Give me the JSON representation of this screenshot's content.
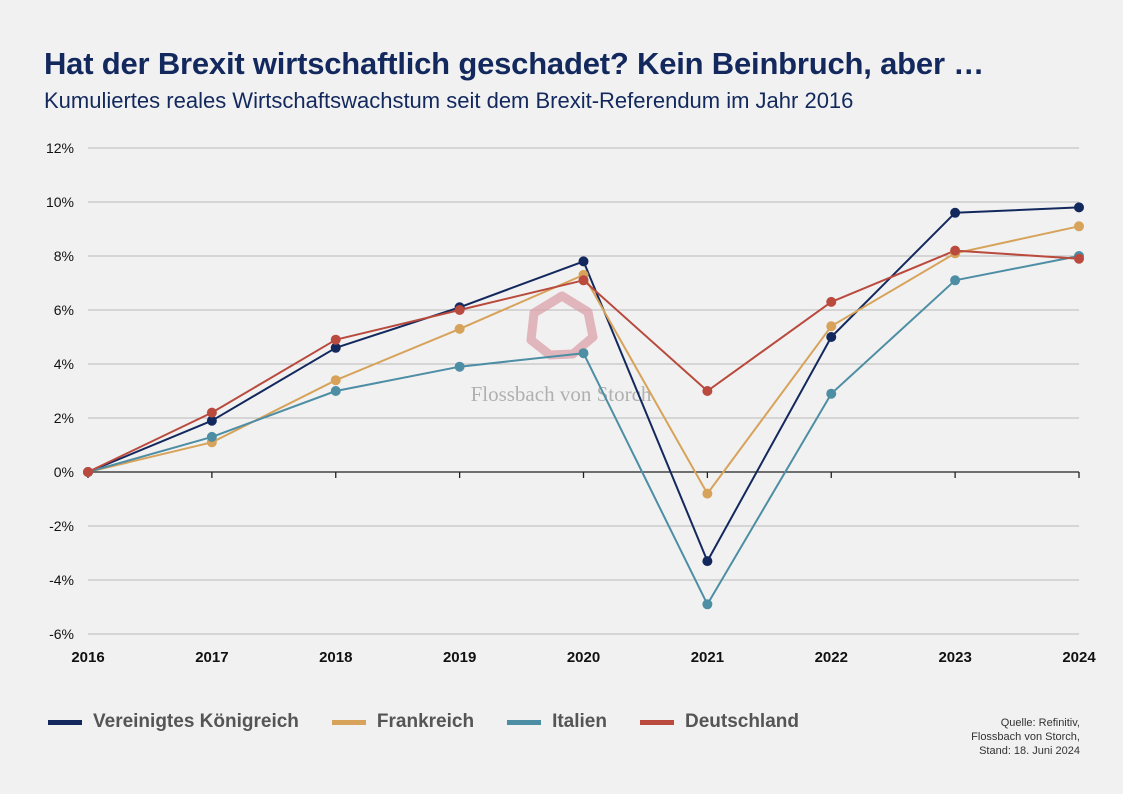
{
  "title": "Hat der Brexit wirtschaftlich geschadet? Kein Beinbruch, aber …",
  "subtitle": "Kumuliertes reales Wirtschaftswachstum seit dem Brexit-Referendum im Jahr 2016",
  "watermark": "Flossbach von Storch",
  "source": {
    "line1": "Quelle: Refinitiv,",
    "line2": "Flossbach von Storch,",
    "line3": "Stand: 18. Juni 2024"
  },
  "colors": {
    "grid": "#b9b9b9",
    "axis": "#222222",
    "watermark_logo": "#d9a0a8",
    "watermark_text": "#a9a9a9"
  },
  "chart_data": {
    "type": "line",
    "title": "Hat der Brexit wirtschaftlich geschadet? Kein Beinbruch, aber …",
    "subtitle": "Kumuliertes reales Wirtschaftswachstum seit dem Brexit-Referendum im Jahr 2016",
    "x": [
      "2016",
      "2017",
      "2018",
      "2019",
      "2020",
      "2021",
      "2022",
      "2023",
      "2024"
    ],
    "ylim": [
      -6,
      12
    ],
    "yticks": [
      -6,
      -4,
      -2,
      0,
      2,
      4,
      6,
      8,
      10,
      12
    ],
    "ytick_labels": [
      "-6%",
      "-4%",
      "-2%",
      "0%",
      "2%",
      "4%",
      "6%",
      "8%",
      "10%",
      "12%"
    ],
    "grid": true,
    "legend_position": "bottom",
    "series": [
      {
        "name": "Vereinigtes Königreich",
        "color": "#13295e",
        "values": [
          0,
          1.9,
          4.6,
          6.1,
          7.8,
          -3.3,
          5.0,
          9.6,
          9.8
        ]
      },
      {
        "name": "Frankreich",
        "color": "#d7a35b",
        "values": [
          0,
          1.1,
          3.4,
          5.3,
          7.3,
          -0.8,
          5.4,
          8.1,
          9.1
        ]
      },
      {
        "name": "Italien",
        "color": "#4d8ea4",
        "values": [
          0,
          1.3,
          3.0,
          3.9,
          4.4,
          -4.9,
          2.9,
          7.1,
          8.0
        ]
      },
      {
        "name": "Deutschland",
        "color": "#b94a3d",
        "values": [
          0,
          2.2,
          4.9,
          6.0,
          7.1,
          3.0,
          6.3,
          8.2,
          7.9
        ]
      }
    ]
  }
}
